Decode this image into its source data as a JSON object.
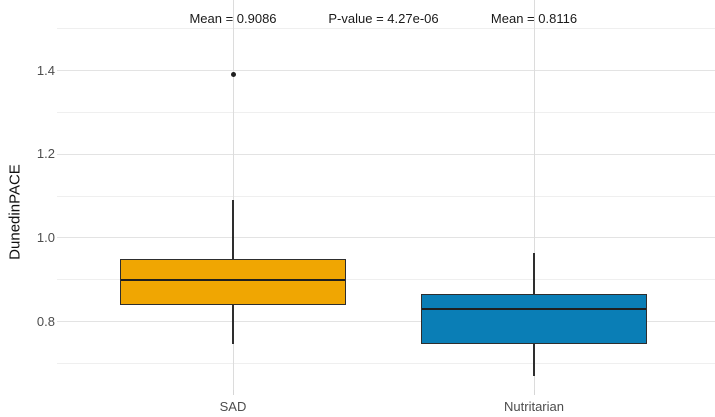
{
  "chart_data": {
    "type": "boxplot",
    "title": "",
    "xlabel": "",
    "ylabel": "DunedinPACE",
    "categories": [
      "SAD",
      "Nutritarian"
    ],
    "y_ticks": [
      0.8,
      1.0,
      1.2,
      1.4
    ],
    "y_minor_ticks": [
      0.7,
      0.9,
      1.1,
      1.3,
      1.5
    ],
    "ylim": [
      0.63,
      1.57
    ],
    "grid": true,
    "legend": "none",
    "series": [
      {
        "name": "SAD",
        "fill": "#F0A602",
        "whisker_low": 0.745,
        "q1": 0.84,
        "median": 0.9,
        "q3": 0.95,
        "whisker_high": 1.09,
        "outliers": [
          1.39
        ],
        "mean": 0.9086
      },
      {
        "name": "Nutritarian",
        "fill": "#0A7EB6",
        "whisker_low": 0.67,
        "q1": 0.745,
        "median": 0.83,
        "q3": 0.865,
        "whisker_high": 0.965,
        "outliers": [],
        "mean": 0.8116
      }
    ],
    "annotations": [
      "Mean = 0.9086",
      "P-value = 4.27e-06",
      "Mean = 0.8116"
    ],
    "p_value": "4.27e-06",
    "colors": {
      "background": "#ffffff",
      "box_border": "#2e2e2e",
      "median": "#1f1f1f",
      "outlier": "#1f1f1f",
      "grid_major": "#e3e3e3",
      "grid_minor": "#efefef",
      "grid_vertical": "#dcdcdc",
      "tick_mark": "#d6d6d6",
      "axis_text": "#4d4d4d",
      "title_text": "#111111",
      "annotation_text": "#1a1a1a"
    }
  }
}
